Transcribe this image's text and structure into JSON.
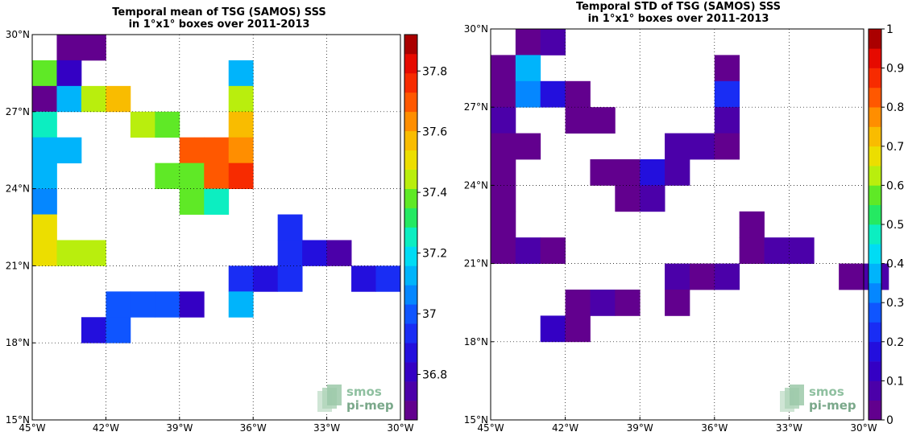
{
  "logo": {
    "line1": "smos",
    "line2": "pi-mep"
  },
  "chart_data": [
    {
      "type": "heatmap",
      "title_line1": "Temporal mean of TSG (SAMOS) SSS",
      "title_line2": "in 1°x1° boxes over 2011-2013",
      "x_ticks": [
        {
          "value": -45,
          "label": "45°W"
        },
        {
          "value": -42,
          "label": "42°W"
        },
        {
          "value": -39,
          "label": "39°W"
        },
        {
          "value": -36,
          "label": "36°W"
        },
        {
          "value": -33,
          "label": "33°W"
        },
        {
          "value": -30,
          "label": "30°W"
        }
      ],
      "y_ticks": [
        {
          "value": 15,
          "label": "15°N"
        },
        {
          "value": 18,
          "label": "18°N"
        },
        {
          "value": 21,
          "label": "21°N"
        },
        {
          "value": 24,
          "label": "24°N"
        },
        {
          "value": 27,
          "label": "27°N"
        },
        {
          "value": 30,
          "label": "30°N"
        }
      ],
      "xlim": [
        -45,
        -30
      ],
      "ylim": [
        15,
        30
      ],
      "grid": true,
      "colorbar": {
        "range": [
          36.65,
          37.92
        ],
        "levels": 20,
        "ticks": [
          {
            "value": 36.8,
            "label": "36.8"
          },
          {
            "value": 37.0,
            "label": "37"
          },
          {
            "value": 37.2,
            "label": "37.2"
          },
          {
            "value": 37.4,
            "label": "37.4"
          },
          {
            "value": 37.6,
            "label": "37.6"
          },
          {
            "value": 37.8,
            "label": "37.8"
          }
        ]
      },
      "cells": [
        {
          "lon": -44,
          "lat": 29,
          "value": 36.68
        },
        {
          "lon": -43,
          "lat": 29,
          "value": 36.68
        },
        {
          "lon": -45,
          "lat": 28,
          "value": 37.35
        },
        {
          "lon": -44,
          "lat": 28,
          "value": 36.78
        },
        {
          "lon": -37,
          "lat": 28,
          "value": 37.12
        },
        {
          "lon": -45,
          "lat": 27,
          "value": 36.68
        },
        {
          "lon": -44,
          "lat": 27,
          "value": 37.12
        },
        {
          "lon": -43,
          "lat": 27,
          "value": 37.42
        },
        {
          "lon": -42,
          "lat": 27,
          "value": 37.6
        },
        {
          "lon": -37,
          "lat": 27,
          "value": 37.42
        },
        {
          "lon": -45,
          "lat": 26,
          "value": 37.25
        },
        {
          "lon": -41,
          "lat": 26,
          "value": 37.42
        },
        {
          "lon": -40,
          "lat": 26,
          "value": 37.35
        },
        {
          "lon": -37,
          "lat": 26,
          "value": 37.55
        },
        {
          "lon": -45,
          "lat": 25,
          "value": 37.12
        },
        {
          "lon": -44,
          "lat": 25,
          "value": 37.12
        },
        {
          "lon": -39,
          "lat": 25,
          "value": 37.72
        },
        {
          "lon": -38,
          "lat": 25,
          "value": 37.72
        },
        {
          "lon": -37,
          "lat": 25,
          "value": 37.65
        },
        {
          "lon": -45,
          "lat": 24,
          "value": 37.12
        },
        {
          "lon": -40,
          "lat": 24,
          "value": 37.35
        },
        {
          "lon": -39,
          "lat": 24,
          "value": 37.35
        },
        {
          "lon": -38,
          "lat": 24,
          "value": 37.68
        },
        {
          "lon": -37,
          "lat": 24,
          "value": 37.78
        },
        {
          "lon": -45,
          "lat": 23,
          "value": 37.05
        },
        {
          "lon": -39,
          "lat": 23,
          "value": 37.35
        },
        {
          "lon": -38,
          "lat": 23,
          "value": 37.25
        },
        {
          "lon": -45,
          "lat": 22,
          "value": 37.48
        },
        {
          "lon": -35,
          "lat": 22,
          "value": 36.95
        },
        {
          "lon": -45,
          "lat": 21,
          "value": 37.48
        },
        {
          "lon": -44,
          "lat": 21,
          "value": 37.42
        },
        {
          "lon": -43,
          "lat": 21,
          "value": 37.42
        },
        {
          "lon": -35,
          "lat": 21,
          "value": 36.95
        },
        {
          "lon": -34,
          "lat": 21,
          "value": 36.85
        },
        {
          "lon": -33,
          "lat": 21,
          "value": 36.72
        },
        {
          "lon": -37,
          "lat": 20,
          "value": 36.95
        },
        {
          "lon": -36,
          "lat": 20,
          "value": 36.85
        },
        {
          "lon": -35,
          "lat": 20,
          "value": 36.95
        },
        {
          "lon": -32,
          "lat": 20,
          "value": 36.9
        },
        {
          "lon": -31,
          "lat": 20,
          "value": 36.95
        },
        {
          "lon": -42,
          "lat": 19,
          "value": 37.02
        },
        {
          "lon": -41,
          "lat": 19,
          "value": 37.02
        },
        {
          "lon": -40,
          "lat": 19,
          "value": 37.02
        },
        {
          "lon": -39,
          "lat": 19,
          "value": 36.78
        },
        {
          "lon": -37,
          "lat": 19,
          "value": 37.12
        },
        {
          "lon": -43,
          "lat": 18,
          "value": 36.88
        },
        {
          "lon": -42,
          "lat": 18,
          "value": 37.02
        }
      ]
    },
    {
      "type": "heatmap",
      "title_line1": "Temporal STD of TSG (SAMOS) SSS",
      "title_line2": "in 1°x1° boxes over 2011-2013",
      "x_ticks": [
        {
          "value": -45,
          "label": "45°W"
        },
        {
          "value": -42,
          "label": "42°W"
        },
        {
          "value": -39,
          "label": "39°W"
        },
        {
          "value": -36,
          "label": "36°W"
        },
        {
          "value": -33,
          "label": "33°W"
        },
        {
          "value": -30,
          "label": "30°W"
        }
      ],
      "y_ticks": [
        {
          "value": 15,
          "label": "15°N"
        },
        {
          "value": 18,
          "label": "18°N"
        },
        {
          "value": 21,
          "label": "21°N"
        },
        {
          "value": 24,
          "label": "24°N"
        },
        {
          "value": 27,
          "label": "27°N"
        },
        {
          "value": 30,
          "label": "30°N"
        }
      ],
      "xlim": [
        -45,
        -30
      ],
      "ylim": [
        15,
        30
      ],
      "grid": true,
      "colorbar": {
        "range": [
          0,
          1
        ],
        "levels": 20,
        "ticks": [
          {
            "value": 0,
            "label": "0"
          },
          {
            "value": 0.1,
            "label": "0.1"
          },
          {
            "value": 0.2,
            "label": "0.2"
          },
          {
            "value": 0.3,
            "label": "0.3"
          },
          {
            "value": 0.4,
            "label": "0.4"
          },
          {
            "value": 0.5,
            "label": "0.5"
          },
          {
            "value": 0.6,
            "label": "0.6"
          },
          {
            "value": 0.7,
            "label": "0.7"
          },
          {
            "value": 0.8,
            "label": "0.8"
          },
          {
            "value": 0.9,
            "label": "0.9"
          },
          {
            "value": 1,
            "label": "1"
          }
        ]
      },
      "cells": [
        {
          "lon": -44,
          "lat": 29,
          "value": 0.04
        },
        {
          "lon": -43,
          "lat": 29,
          "value": 0.08
        },
        {
          "lon": -45,
          "lat": 28,
          "value": 0.03
        },
        {
          "lon": -44,
          "lat": 28,
          "value": 0.38
        },
        {
          "lon": -36,
          "lat": 28,
          "value": 0.03
        },
        {
          "lon": -45,
          "lat": 27,
          "value": 0.03
        },
        {
          "lon": -44,
          "lat": 27,
          "value": 0.32
        },
        {
          "lon": -43,
          "lat": 27,
          "value": 0.17
        },
        {
          "lon": -42,
          "lat": 27,
          "value": 0.04
        },
        {
          "lon": -36,
          "lat": 27,
          "value": 0.22
        },
        {
          "lon": -45,
          "lat": 26,
          "value": 0.08
        },
        {
          "lon": -42,
          "lat": 26,
          "value": 0.04
        },
        {
          "lon": -41,
          "lat": 26,
          "value": 0.04
        },
        {
          "lon": -36,
          "lat": 26,
          "value": 0.08
        },
        {
          "lon": -45,
          "lat": 25,
          "value": 0.03
        },
        {
          "lon": -44,
          "lat": 25,
          "value": 0.03
        },
        {
          "lon": -38,
          "lat": 25,
          "value": 0.08
        },
        {
          "lon": -37,
          "lat": 25,
          "value": 0.08
        },
        {
          "lon": -36,
          "lat": 25,
          "value": 0.04
        },
        {
          "lon": -45,
          "lat": 24,
          "value": 0.03
        },
        {
          "lon": -41,
          "lat": 24,
          "value": 0.04
        },
        {
          "lon": -40,
          "lat": 24,
          "value": 0.04
        },
        {
          "lon": -39,
          "lat": 24,
          "value": 0.16
        },
        {
          "lon": -38,
          "lat": 24,
          "value": 0.08
        },
        {
          "lon": -45,
          "lat": 23,
          "value": 0.03
        },
        {
          "lon": -40,
          "lat": 23,
          "value": 0.04
        },
        {
          "lon": -39,
          "lat": 23,
          "value": 0.08
        },
        {
          "lon": -45,
          "lat": 22,
          "value": 0.03
        },
        {
          "lon": -35,
          "lat": 22,
          "value": 0.03
        },
        {
          "lon": -45,
          "lat": 21,
          "value": 0.03
        },
        {
          "lon": -44,
          "lat": 21,
          "value": 0.08
        },
        {
          "lon": -43,
          "lat": 21,
          "value": 0.03
        },
        {
          "lon": -35,
          "lat": 21,
          "value": 0.03
        },
        {
          "lon": -34,
          "lat": 21,
          "value": 0.08
        },
        {
          "lon": -33,
          "lat": 21,
          "value": 0.08
        },
        {
          "lon": -38,
          "lat": 20,
          "value": 0.08
        },
        {
          "lon": -37,
          "lat": 20,
          "value": 0.04
        },
        {
          "lon": -36,
          "lat": 20,
          "value": 0.08
        },
        {
          "lon": -31,
          "lat": 20,
          "value": 0.04
        },
        {
          "lon": -30,
          "lat": 20,
          "value": 0.08
        },
        {
          "lon": -42,
          "lat": 19,
          "value": 0.04
        },
        {
          "lon": -41,
          "lat": 19,
          "value": 0.08
        },
        {
          "lon": -40,
          "lat": 19,
          "value": 0.04
        },
        {
          "lon": -38,
          "lat": 19,
          "value": 0.04
        },
        {
          "lon": -43,
          "lat": 18,
          "value": 0.13
        },
        {
          "lon": -42,
          "lat": 18,
          "value": 0.04
        }
      ]
    }
  ]
}
